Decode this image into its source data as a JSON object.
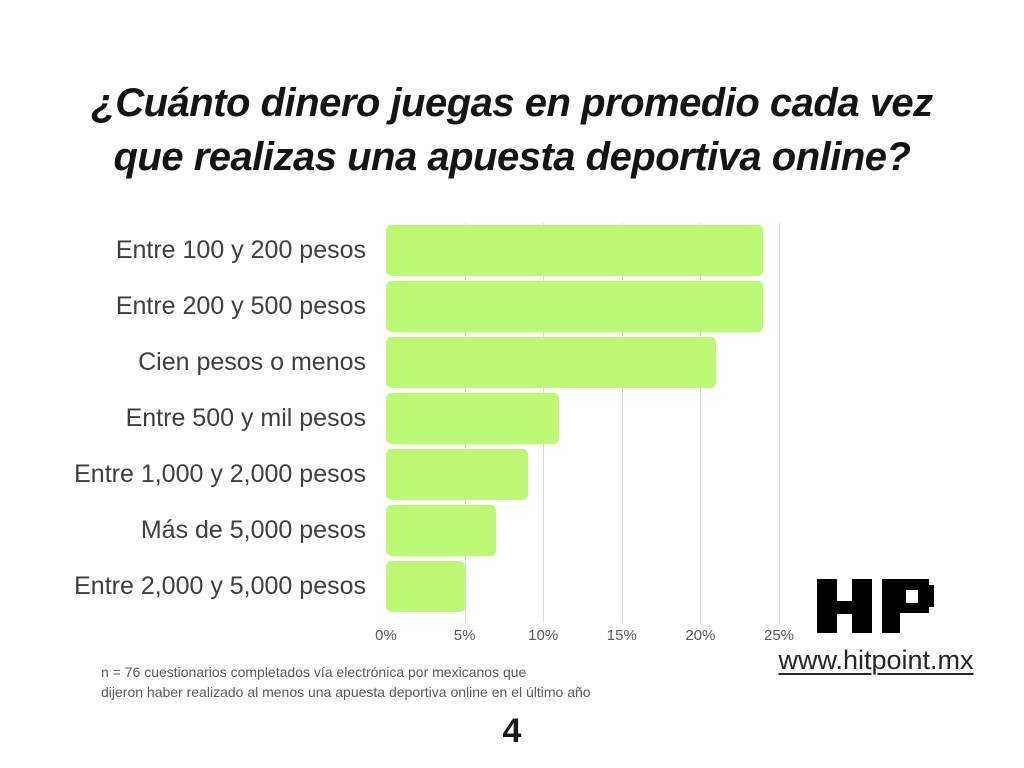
{
  "title": {
    "lines": [
      "¿Cuánto dinero juegas en promedio cada vez",
      "que realizas una apuesta deportiva online?"
    ]
  },
  "chart_data": {
    "type": "bar",
    "orientation": "horizontal",
    "title": "¿Cuánto dinero juegas en promedio cada vez que realizas una apuesta deportiva online?",
    "categories": [
      "Entre 100 y 200 pesos",
      "Entre 200 y 500 pesos",
      "Cien pesos o menos",
      "Entre 500 y mil pesos",
      "Entre 1,000 y 2,000 pesos",
      "Más de 5,000 pesos",
      "Entre 2,000 y 5,000 pesos"
    ],
    "values": [
      24,
      24,
      21,
      11,
      9,
      7,
      5
    ],
    "unit": "%",
    "xlim": [
      0,
      25
    ],
    "x_tick_values": [
      0,
      5,
      10,
      15,
      20,
      25
    ],
    "x_tick_labels": [
      "0%",
      "5%",
      "10%",
      "15%",
      "20%",
      "25%"
    ],
    "grid": true,
    "legend": false,
    "bar_color": "#bdfa73",
    "gridline_color": "#d9d9d9"
  },
  "footnote": {
    "lines": [
      "n = 76 cuestionarios completados vía electrónica por mexicanos que",
      "dijeron haber realizado al menos una apuesta deportiva online en el último año"
    ]
  },
  "branding": {
    "logo_text": "HP",
    "website": "www.hitpoint.mx",
    "logo_color": "#000000"
  },
  "page_number": "4"
}
